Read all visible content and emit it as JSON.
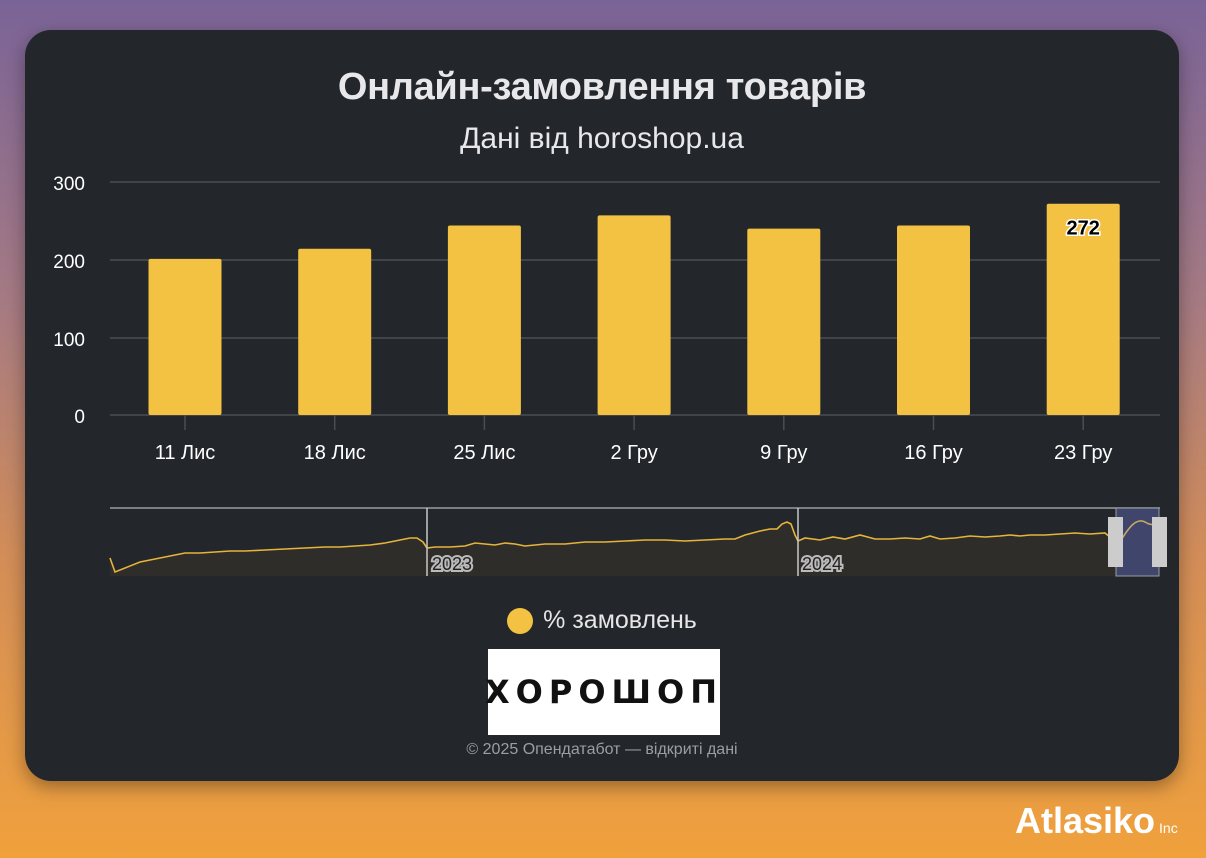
{
  "title": "Онлайн-замовлення товарів",
  "subtitle": "Дані від horoshop.ua",
  "legend": {
    "label": "% замовлень",
    "color": "#f4c242"
  },
  "logo_text": "ХОРОШОП",
  "copyright": "© 2025 Опендатабот — відкриті дані",
  "brand": {
    "name": "Atlasiko",
    "suffix": "Inc"
  },
  "navigator": {
    "year_labels": [
      "2023",
      "2024"
    ]
  },
  "y_ticks": [
    "300",
    "200",
    "100",
    "0"
  ],
  "chart_data": {
    "type": "bar",
    "title": "Онлайн-замовлення товарів",
    "subtitle": "Дані від horoshop.ua",
    "categories": [
      "11 Лис",
      "18 Лис",
      "25 Лис",
      "2 Гру",
      "9 Гру",
      "16 Гру",
      "23 Гру"
    ],
    "series": [
      {
        "name": "% замовлень",
        "color": "#f4c242",
        "values": [
          201,
          214,
          244,
          257,
          240,
          244,
          272
        ]
      }
    ],
    "data_labels": [
      {
        "category": "23 Гру",
        "value": "272"
      }
    ],
    "xlabel": "",
    "ylabel": "",
    "ylim": [
      0,
      300
    ],
    "yticks": [
      0,
      100,
      200,
      300
    ],
    "grid": true,
    "legend_position": "bottom",
    "navigator": {
      "type": "area",
      "year_markers": [
        "2023",
        "2024"
      ],
      "selected_range": "last weeks (Nov–Dec 2024)"
    }
  }
}
